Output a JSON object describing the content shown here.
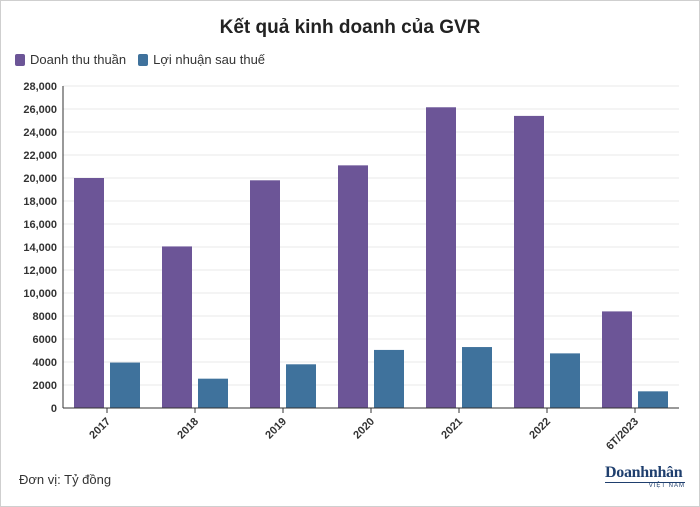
{
  "header": {
    "title": "Kết quả kinh doanh của GVR"
  },
  "footer": {
    "unit_note": "Đơn vị: Tỷ đồng",
    "logo_main": "Doanhnhân",
    "logo_sub": "VIỆT NAM"
  },
  "colors": {
    "revenue": "#6c5597",
    "profit": "#3f729c",
    "grid": "#e8e8e8",
    "axis": "#333333"
  },
  "chart_data": {
    "type": "bar",
    "title": "Kết quả kinh doanh của GVR",
    "xlabel": "",
    "ylabel": "",
    "ylim": [
      0,
      28000
    ],
    "yticks": [
      0,
      2000,
      4000,
      6000,
      8000,
      10000,
      12000,
      14000,
      16000,
      18000,
      20000,
      22000,
      24000,
      26000,
      28000
    ],
    "ytick_labels": [
      "0",
      "2000",
      "4000",
      "6000",
      "8000",
      "10,000",
      "12,000",
      "14,000",
      "16,000",
      "18,000",
      "20,000",
      "22,000",
      "24,000",
      "26,000",
      "28,000"
    ],
    "categories": [
      "2017",
      "2018",
      "2019",
      "2020",
      "2021",
      "2022",
      "6T/2023"
    ],
    "series": [
      {
        "name": "Doanh thu thuần",
        "values": [
          20000,
          14050,
          19800,
          21100,
          26150,
          25400,
          8400
        ]
      },
      {
        "name": "Lợi nhuận sau thuế",
        "values": [
          3950,
          2550,
          3800,
          5050,
          5300,
          4750,
          1450
        ]
      }
    ],
    "legend_position": "top-left",
    "grid": true
  }
}
